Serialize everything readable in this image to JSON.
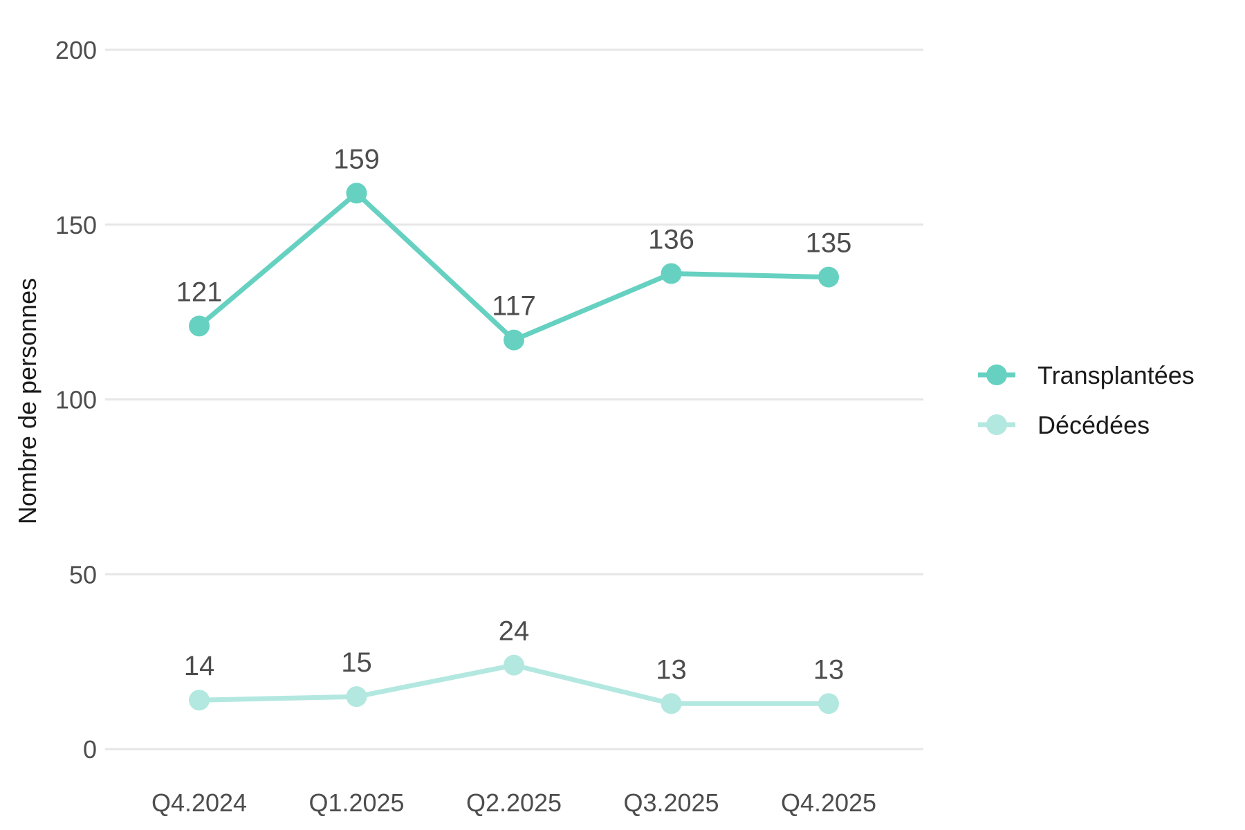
{
  "chart_data": {
    "type": "line",
    "title": "",
    "xlabel": "",
    "ylabel": "Nombre de personnes",
    "ylim": [
      0,
      200
    ],
    "yticks": [
      0,
      50,
      100,
      150,
      200
    ],
    "grid": true,
    "legend_position": "right",
    "categories": [
      "Q4.2024",
      "Q1.2025",
      "Q2.2025",
      "Q3.2025",
      "Q4.2025"
    ],
    "series": [
      {
        "name": "Transplantées",
        "color": "#66d1c1",
        "values": [
          121,
          159,
          117,
          136,
          135
        ]
      },
      {
        "name": "Décédées",
        "color": "#b3e8e0",
        "values": [
          14,
          15,
          24,
          13,
          13
        ]
      }
    ]
  }
}
